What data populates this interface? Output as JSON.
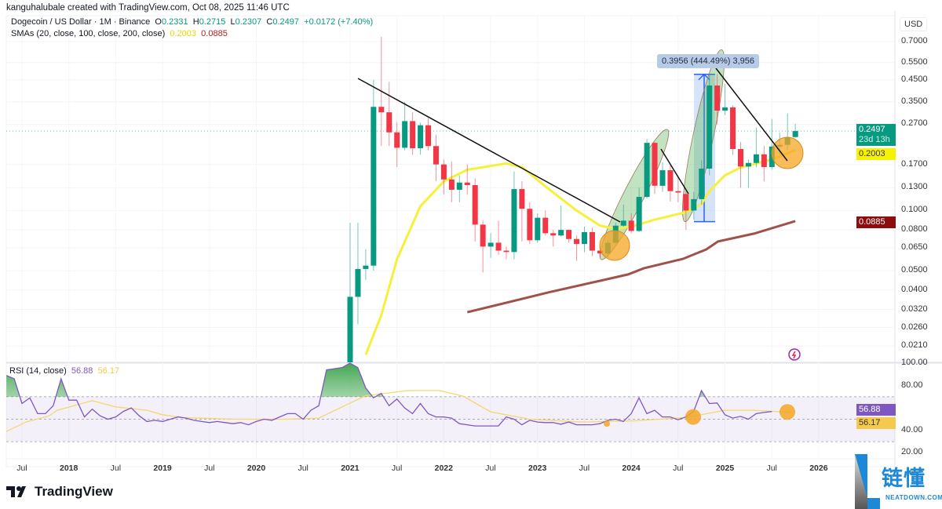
{
  "credit": "kanguhalubale created with TradingView.com, Oct 08, 2025 11:46 UTC",
  "symbol": {
    "name": "Dogecoin / US Dollar · 1M · Binance",
    "o_label": "O",
    "o": "0.2331",
    "h_label": "H",
    "h": "0.2715",
    "l_label": "L",
    "l": "0.2307",
    "c_label": "C",
    "c": "0.2497",
    "change": "+0.0172 (+7.40%)"
  },
  "sma_legend": {
    "label": "SMAs (20, close, 100, close, 200, close)",
    "sma20": "0.2003",
    "sma200": "0.0885"
  },
  "rsi_legend": {
    "label": "RSI (14, close)",
    "rsi": "56.88",
    "rsi_ma": "56.17"
  },
  "currency": "USD",
  "price_ticks": [
    "0.7000",
    "0.5500",
    "0.4500",
    "0.3500",
    "0.2700",
    "0.1700",
    "0.1300",
    "0.1000",
    "0.0800",
    "0.0650",
    "0.0500",
    "0.0400",
    "0.0320",
    "0.0260",
    "0.0210"
  ],
  "price_badges": {
    "last": "0.2497",
    "countdown": "23d 13h",
    "sma20": "0.2003",
    "sma200": "0.0885"
  },
  "rsi_ticks": [
    "100.00",
    "80.00",
    "40.00",
    "20.00"
  ],
  "rsi_badges": {
    "rsi": "56.88",
    "rsi_ma": "56.17"
  },
  "time_labels": [
    {
      "text": "Jul",
      "year": false
    },
    {
      "text": "2018",
      "year": true
    },
    {
      "text": "Jul",
      "year": false
    },
    {
      "text": "2019",
      "year": true
    },
    {
      "text": "Jul",
      "year": false
    },
    {
      "text": "2020",
      "year": true
    },
    {
      "text": "Jul",
      "year": false
    },
    {
      "text": "2021",
      "year": true
    },
    {
      "text": "Jul",
      "year": false
    },
    {
      "text": "2022",
      "year": true
    },
    {
      "text": "Jul",
      "year": false
    },
    {
      "text": "2023",
      "year": true
    },
    {
      "text": "Jul",
      "year": false
    },
    {
      "text": "2024",
      "year": true
    },
    {
      "text": "Jul",
      "year": false
    },
    {
      "text": "2025",
      "year": true
    },
    {
      "text": "Jul",
      "year": false
    },
    {
      "text": "2026",
      "year": true
    }
  ],
  "measure_label": "0.3956 (444.49%) 3,956",
  "branding": {
    "tradingview": "TradingView",
    "watermark_cn": "链懂",
    "watermark_en": "NEATDOWN.COM"
  },
  "colors": {
    "up": "#089981",
    "down": "#f23645",
    "sma20": "#f7f03a",
    "sma200": "#a0524a",
    "rsi": "#7e57c2",
    "rsi_ma": "#f5d76e"
  },
  "chart_data": {
    "type": "candlestick",
    "title": "Dogecoin / US Dollar · 1M · Binance",
    "y_scale": "log",
    "ylim": [
      0.02,
      0.72
    ],
    "candles_start": "2021-01",
    "candles": [
      [
        "2021-01",
        0.0047,
        0.087,
        0.0047,
        0.037
      ],
      [
        "2021-02",
        0.037,
        0.087,
        0.027,
        0.051
      ],
      [
        "2021-03",
        0.051,
        0.064,
        0.045,
        0.053
      ],
      [
        "2021-04",
        0.053,
        0.45,
        0.05,
        0.33
      ],
      [
        "2021-05",
        0.33,
        0.74,
        0.21,
        0.31
      ],
      [
        "2021-06",
        0.31,
        0.44,
        0.21,
        0.246
      ],
      [
        "2021-07",
        0.246,
        0.277,
        0.165,
        0.206
      ],
      [
        "2021-08",
        0.206,
        0.35,
        0.2,
        0.28
      ],
      [
        "2021-09",
        0.28,
        0.31,
        0.19,
        0.205
      ],
      [
        "2021-10",
        0.205,
        0.275,
        0.19,
        0.267
      ],
      [
        "2021-11",
        0.267,
        0.29,
        0.2,
        0.21
      ],
      [
        "2021-12",
        0.21,
        0.24,
        0.14,
        0.17
      ],
      [
        "2022-01",
        0.17,
        0.18,
        0.12,
        0.143
      ],
      [
        "2022-02",
        0.143,
        0.176,
        0.11,
        0.127
      ],
      [
        "2022-03",
        0.127,
        0.15,
        0.11,
        0.138
      ],
      [
        "2022-04",
        0.138,
        0.17,
        0.12,
        0.134
      ],
      [
        "2022-05",
        0.134,
        0.145,
        0.07,
        0.085
      ],
      [
        "2022-06",
        0.085,
        0.089,
        0.049,
        0.066
      ],
      [
        "2022-07",
        0.066,
        0.077,
        0.058,
        0.069
      ],
      [
        "2022-08",
        0.069,
        0.089,
        0.06,
        0.063
      ],
      [
        "2022-09",
        0.063,
        0.066,
        0.057,
        0.062
      ],
      [
        "2022-10",
        0.062,
        0.157,
        0.057,
        0.128
      ],
      [
        "2022-11",
        0.128,
        0.14,
        0.07,
        0.102
      ],
      [
        "2022-12",
        0.102,
        0.11,
        0.068,
        0.071
      ],
      [
        "2023-01",
        0.071,
        0.097,
        0.069,
        0.092
      ],
      [
        "2023-02",
        0.092,
        0.1,
        0.075,
        0.077
      ],
      [
        "2023-03",
        0.077,
        0.08,
        0.066,
        0.075
      ],
      [
        "2023-04",
        0.075,
        0.106,
        0.074,
        0.08
      ],
      [
        "2023-05",
        0.08,
        0.08,
        0.069,
        0.072
      ],
      [
        "2023-06",
        0.072,
        0.075,
        0.056,
        0.068
      ],
      [
        "2023-07",
        0.068,
        0.083,
        0.062,
        0.078
      ],
      [
        "2023-08",
        0.078,
        0.082,
        0.059,
        0.063
      ],
      [
        "2023-09",
        0.063,
        0.066,
        0.058,
        0.061
      ],
      [
        "2023-10",
        0.061,
        0.071,
        0.058,
        0.069
      ],
      [
        "2023-11",
        0.069,
        0.087,
        0.068,
        0.084
      ],
      [
        "2023-12",
        0.084,
        0.107,
        0.083,
        0.089
      ],
      [
        "2024-01",
        0.089,
        0.097,
        0.077,
        0.079
      ],
      [
        "2024-02",
        0.079,
        0.13,
        0.078,
        0.117
      ],
      [
        "2024-03",
        0.117,
        0.228,
        0.115,
        0.218
      ],
      [
        "2024-04",
        0.218,
        0.22,
        0.121,
        0.133
      ],
      [
        "2024-05",
        0.133,
        0.174,
        0.124,
        0.159
      ],
      [
        "2024-06",
        0.159,
        0.168,
        0.111,
        0.125
      ],
      [
        "2024-07",
        0.125,
        0.148,
        0.11,
        0.123
      ],
      [
        "2024-08",
        0.121,
        0.125,
        0.08,
        0.1
      ],
      [
        "2024-09",
        0.1,
        0.124,
        0.09,
        0.114
      ],
      [
        "2024-10",
        0.114,
        0.178,
        0.107,
        0.162
      ],
      [
        "2024-11",
        0.162,
        0.48,
        0.15,
        0.422
      ],
      [
        "2024-12",
        0.422,
        0.48,
        0.27,
        0.316
      ],
      [
        "2025-01",
        0.316,
        0.43,
        0.3,
        0.328
      ],
      [
        "2025-02",
        0.328,
        0.335,
        0.19,
        0.203
      ],
      [
        "2025-03",
        0.203,
        0.22,
        0.13,
        0.166
      ],
      [
        "2025-04",
        0.166,
        0.18,
        0.13,
        0.173
      ],
      [
        "2025-05",
        0.173,
        0.26,
        0.165,
        0.191
      ],
      [
        "2025-06",
        0.191,
        0.21,
        0.14,
        0.165
      ],
      [
        "2025-07",
        0.165,
        0.287,
        0.16,
        0.209
      ],
      [
        "2025-08",
        0.209,
        0.245,
        0.19,
        0.213
      ],
      [
        "2025-09",
        0.213,
        0.306,
        0.2,
        0.232
      ],
      [
        "2025-10",
        0.2331,
        0.2715,
        0.2307,
        0.2497
      ]
    ],
    "sma20_by_month_from_2021_01": [
      [
        2,
        0.019
      ],
      [
        4,
        0.03
      ],
      [
        6,
        0.057
      ],
      [
        9,
        0.105
      ],
      [
        12,
        0.14
      ],
      [
        15,
        0.16
      ],
      [
        20,
        0.172
      ],
      [
        22,
        0.165
      ],
      [
        25,
        0.132
      ],
      [
        29,
        0.1
      ],
      [
        32,
        0.084
      ],
      [
        34,
        0.081
      ],
      [
        36,
        0.083
      ],
      [
        39,
        0.09
      ],
      [
        43,
        0.098
      ],
      [
        45,
        0.108
      ],
      [
        46,
        0.125
      ],
      [
        48,
        0.15
      ],
      [
        50,
        0.164
      ],
      [
        54,
        0.18
      ],
      [
        57,
        0.2003
      ]
    ],
    "sma200_by_month_from_2021_01": [
      [
        15,
        0.031
      ],
      [
        25.5,
        0.039
      ],
      [
        35.6,
        0.0479
      ],
      [
        37.6,
        0.0514
      ],
      [
        42.6,
        0.0573
      ],
      [
        45.6,
        0.0639
      ],
      [
        47.1,
        0.07
      ],
      [
        51.7,
        0.0766
      ],
      [
        57,
        0.0885
      ]
    ],
    "rsi": {
      "start": "2017-05",
      "ylim": [
        0,
        100
      ],
      "bands": [
        30,
        50,
        70
      ],
      "values": [
        89,
        86,
        64,
        69,
        55,
        55,
        62,
        86,
        67,
        67,
        52,
        59,
        53,
        50,
        52,
        57,
        60,
        53,
        48,
        49,
        48,
        50,
        52,
        51,
        49,
        48,
        47,
        48,
        47,
        46,
        47,
        45,
        48,
        50,
        49,
        52,
        55,
        55,
        50,
        58,
        62,
        94,
        95,
        96,
        100,
        96,
        78,
        69,
        73,
        62,
        68,
        60,
        55,
        64,
        55,
        52,
        52,
        51,
        46,
        45,
        44,
        44,
        44,
        44,
        52,
        50,
        45,
        49,
        47.5,
        47,
        47,
        45.5,
        47.5,
        45,
        45,
        45,
        46,
        49,
        50,
        48,
        55,
        69,
        55,
        58,
        52,
        52,
        49.5,
        52,
        57,
        75.5,
        64,
        64.5,
        54,
        51,
        52.5,
        50,
        55,
        56,
        56.88
      ],
      "ma_by_month_from_2017_07": [
        [
          -2,
          39
        ],
        [
          0.5,
          47.5
        ],
        [
          3.5,
          53
        ],
        [
          4.5,
          58
        ],
        [
          9,
          66.5
        ],
        [
          12,
          61
        ],
        [
          16,
          58
        ],
        [
          18,
          54
        ],
        [
          20.6,
          51.5
        ],
        [
          27.3,
          50
        ],
        [
          34,
          50
        ],
        [
          38,
          51
        ],
        [
          40.7,
          60
        ],
        [
          44,
          71
        ],
        [
          49.4,
          75.5
        ],
        [
          53.5,
          75.5
        ],
        [
          56.5,
          70.5
        ],
        [
          60,
          56.5
        ],
        [
          65,
          50
        ],
        [
          71.6,
          47.5
        ],
        [
          78.3,
          48.5
        ],
        [
          85,
          51.5
        ],
        [
          90,
          58
        ],
        [
          93.4,
          58
        ],
        [
          98.4,
          56.17
        ]
      ]
    }
  }
}
